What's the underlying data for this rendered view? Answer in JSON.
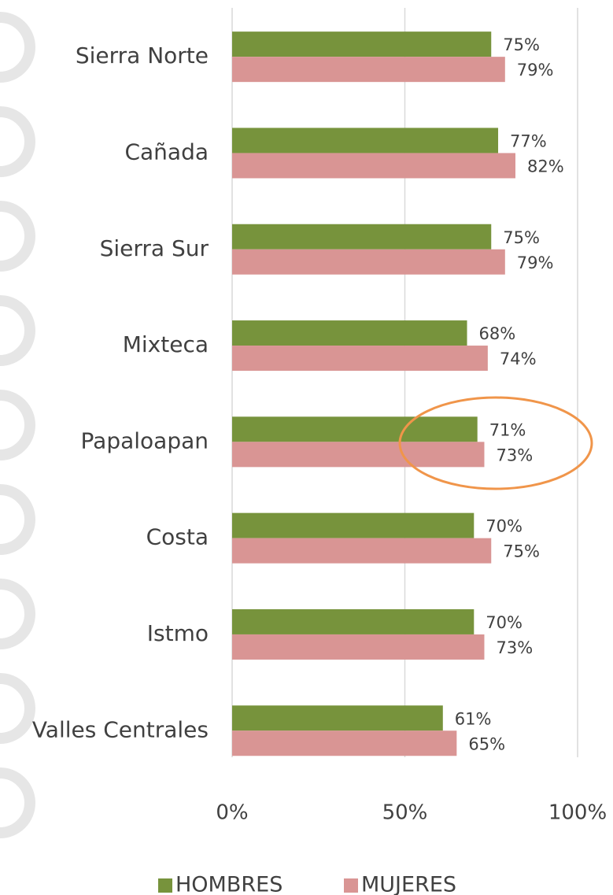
{
  "chart_data": {
    "type": "hbar",
    "categories": [
      "Sierra Norte",
      "Cañada",
      "Sierra Sur",
      "Mixteca",
      "Papaloapan",
      "Costa",
      "Istmo",
      "Valles Centrales"
    ],
    "series": [
      {
        "name": "HOMBRES",
        "color": "#77933c",
        "values": [
          75,
          77,
          75,
          68,
          71,
          70,
          70,
          61
        ],
        "value_labels": [
          "75%",
          "77%",
          "75%",
          "68%",
          "71%",
          "70%",
          "70%",
          "61%"
        ]
      },
      {
        "name": "MUJERES",
        "color": "#d99594",
        "values": [
          79,
          82,
          79,
          74,
          73,
          75,
          73,
          65
        ],
        "value_labels": [
          "79%",
          "82%",
          "79%",
          "74%",
          "73%",
          "75%",
          "73%",
          "65%"
        ]
      }
    ],
    "xlim": [
      0,
      100
    ],
    "xticks": [
      {
        "value": 0,
        "label": "0%"
      },
      {
        "value": 50,
        "label": "50%"
      },
      {
        "value": 100,
        "label": "100%"
      }
    ],
    "grid": true,
    "legend": "bottom"
  }
}
